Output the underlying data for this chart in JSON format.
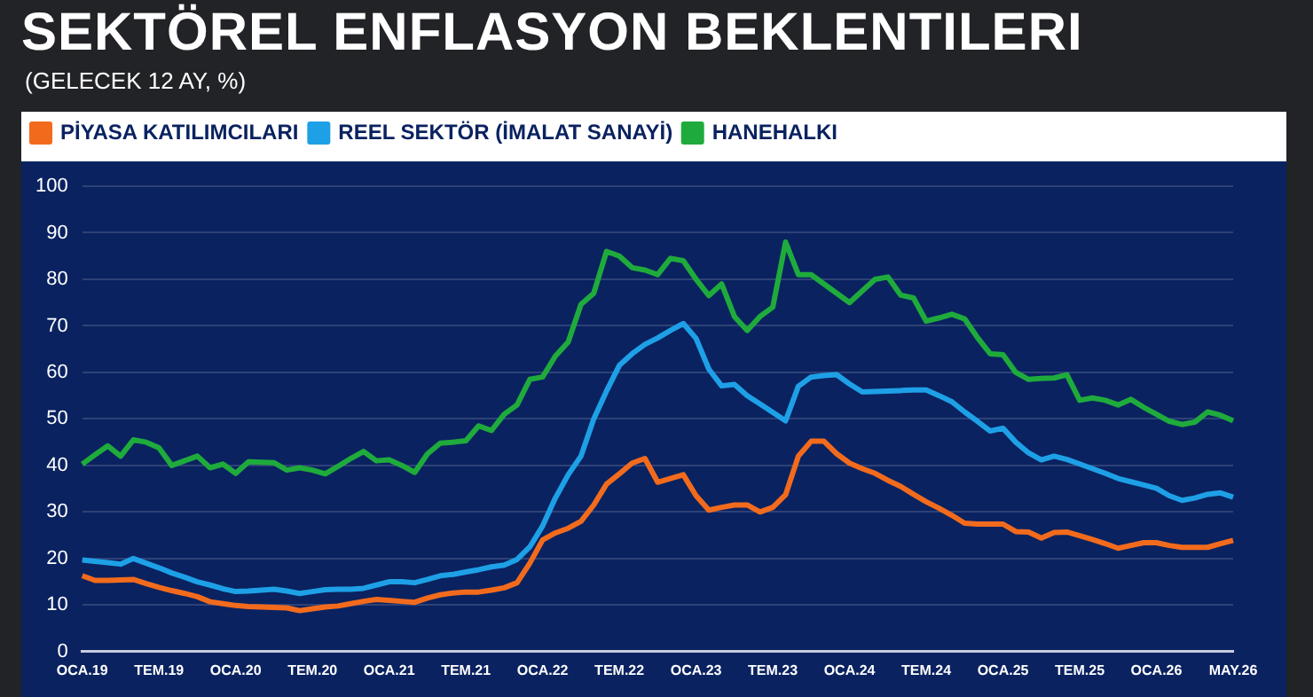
{
  "chart_data": {
    "type": "line",
    "title": "SEKTÖREL ENFLASYON BEKLENTILERI",
    "subtitle": "(GELECEK 12 AY, %)",
    "categories": [
      "OCA.19",
      null,
      null,
      null,
      null,
      null,
      "TEM.19",
      null,
      null,
      null,
      null,
      null,
      "OCA.20",
      null,
      null,
      null,
      null,
      null,
      "TEM.20",
      null,
      null,
      null,
      null,
      null,
      "OCA.21",
      null,
      null,
      null,
      null,
      null,
      "TEM.21",
      null,
      null,
      null,
      null,
      null,
      "OCA.22",
      null,
      null,
      null,
      null,
      null,
      "TEM.22",
      null,
      null,
      null,
      null,
      null,
      "OCA.23",
      null,
      null,
      null,
      null,
      null,
      "TEM.23",
      null,
      null,
      null,
      null,
      null,
      "OCA.24",
      null,
      null,
      null,
      null,
      null,
      "TEM.24",
      null,
      null,
      null,
      null,
      null,
      "OCA.25",
      null,
      null,
      null,
      null,
      null,
      "TEM.25",
      null,
      null,
      null,
      null,
      null,
      "OCA.26",
      null,
      null,
      null,
      null,
      null,
      "MAY.26"
    ],
    "series": [
      {
        "name": "PİYASA KATILIMCILARI",
        "color": "#f26b1d",
        "values": [
          16.3,
          15.3,
          15.3,
          15.4,
          15.5,
          14.6,
          13.8,
          13.1,
          12.5,
          11.8,
          10.7,
          10.3,
          9.9,
          9.7,
          9.6,
          9.5,
          9.4,
          8.8,
          9.2,
          9.6,
          9.8,
          10.3,
          10.8,
          11.2,
          11,
          10.8,
          10.6,
          11.5,
          12.2,
          12.6,
          12.8,
          12.8,
          13.2,
          13.7,
          14.8,
          19,
          24,
          25.5,
          26.5,
          28,
          31.5,
          36,
          38.2,
          40.5,
          41.5,
          36.4,
          37.2,
          38,
          33.5,
          30.4,
          31,
          31.5,
          31.5,
          30,
          31,
          33.7,
          42,
          45.2,
          45.2,
          42.5,
          40.5,
          39.3,
          38.3,
          36.8,
          35.5,
          33.8,
          32.2,
          30.8,
          29.3,
          27.6,
          27.4,
          27.4,
          27.4,
          25.8,
          25.7,
          24.4,
          25.6,
          25.7,
          24.9,
          24.1,
          23.2,
          22.2,
          22.8,
          23.4,
          23.4,
          22.8,
          22.4,
          22.4,
          22.4,
          23.2,
          23.9
        ]
      },
      {
        "name": "REEL SEKTÖR (İMALAT SANAYİ)",
        "color": "#1ea0e6",
        "values": [
          19.7,
          19.4,
          19.1,
          18.8,
          20,
          19,
          18,
          16.9,
          16,
          15,
          14.3,
          13.5,
          12.9,
          13,
          13.2,
          13.4,
          13,
          12.5,
          12.9,
          13.3,
          13.4,
          13.4,
          13.6,
          14.3,
          15,
          15,
          14.8,
          15.5,
          16.3,
          16.6,
          17.1,
          17.6,
          18.2,
          18.6,
          19.8,
          22.5,
          27,
          33,
          38,
          42,
          50,
          56,
          61.5,
          64,
          66,
          67.4,
          69,
          70.5,
          67.3,
          60.7,
          57.1,
          57.4,
          55,
          53.2,
          51.4,
          49.6,
          57,
          59,
          59.3,
          59.5,
          57.5,
          55.8,
          55.9,
          56,
          56.1,
          56.2,
          56.2,
          55,
          53.7,
          51.5,
          49.5,
          47.4,
          48,
          45,
          42.7,
          41.2,
          42,
          41.3,
          40.3,
          39.3,
          38.3,
          37.2,
          36.5,
          35.8,
          35.1,
          33.5,
          32.5,
          33,
          33.8,
          34.1,
          33.2
        ]
      },
      {
        "name": "HANEHALKI",
        "color": "#1fab3c",
        "values": [
          40.3,
          42.3,
          44.2,
          42,
          45.5,
          45,
          43.8,
          40,
          41,
          42,
          39.5,
          40.3,
          38.3,
          40.8,
          40.7,
          40.6,
          39,
          39.5,
          39,
          38.2,
          39.8,
          41.5,
          43,
          41,
          41.2,
          40,
          38.5,
          42.5,
          44.8,
          45,
          45.3,
          48.5,
          47.5,
          51,
          53,
          58.5,
          59,
          63.5,
          66.5,
          74.6,
          77,
          86,
          85,
          82.5,
          82,
          81,
          84.5,
          84,
          80,
          76.5,
          79,
          72,
          69,
          72,
          74,
          88,
          81,
          81,
          79,
          77,
          75,
          77.5,
          80,
          80.5,
          76.6,
          76,
          71,
          71.7,
          72.5,
          71.5,
          67.5,
          64,
          63.8,
          60,
          58.5,
          58.7,
          58.8,
          59.5,
          54,
          54.5,
          54,
          53,
          54.2,
          52.5,
          51,
          49.5,
          48.8,
          49.3,
          51.5,
          50.8,
          49.6
        ]
      }
    ],
    "ylim": [
      0,
      100
    ],
    "yticks": [
      0,
      10,
      20,
      30,
      40,
      50,
      60,
      70,
      80,
      90,
      100
    ],
    "grid": "y",
    "legend": "top",
    "marker": "none",
    "line_style": "solid"
  }
}
